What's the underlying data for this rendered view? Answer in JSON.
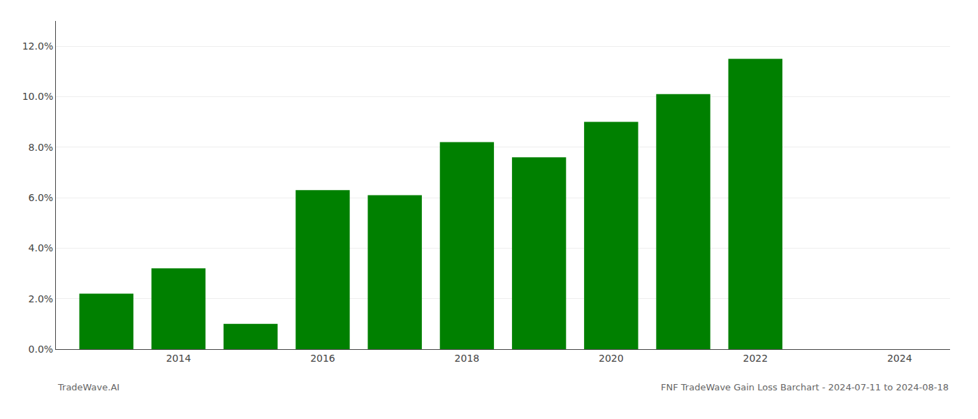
{
  "chart_data": {
    "type": "bar",
    "title": "FNF TradeWave Gain Loss Barchart - 2024-07-11 to 2024-08-18",
    "annotations": [
      "TradeWave.AI"
    ],
    "x": [
      2013,
      2014,
      2015,
      2016,
      2017,
      2018,
      2019,
      2020,
      2021,
      2022,
      2023
    ],
    "values": [
      0.022,
      0.032,
      0.01,
      0.063,
      0.061,
      0.082,
      0.076,
      0.09,
      0.101,
      0.115,
      0.0
    ],
    "color": "#008000",
    "xlim": [
      2012.3,
      2024.7
    ],
    "xticks": [
      2014,
      2016,
      2018,
      2020,
      2022,
      2024
    ],
    "ylim": [
      0,
      0.13
    ],
    "yticks": [
      {
        "value": 0.0,
        "label": "0.0%"
      },
      {
        "value": 0.02,
        "label": "2.0%"
      },
      {
        "value": 0.04,
        "label": "4.0%"
      },
      {
        "value": 0.06,
        "label": "6.0%"
      },
      {
        "value": 0.08,
        "label": "8.0%"
      },
      {
        "value": 0.1,
        "label": "10.0%"
      },
      {
        "value": 0.12,
        "label": "12.0%"
      }
    ],
    "grid": true
  }
}
